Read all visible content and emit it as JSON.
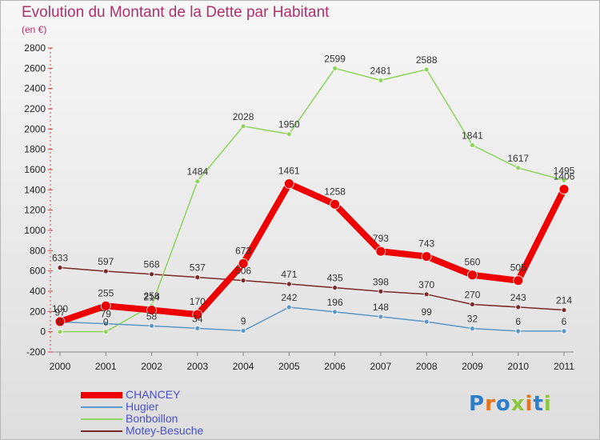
{
  "title": "Evolution du Montant de la Dette par Habitant",
  "subtitle": "(en €)",
  "logo": "Proxiti",
  "chart_data": {
    "type": "line",
    "title": "Evolution du Montant de la Dette par Habitant",
    "subtitle": "(en €)",
    "categories": [
      "2000",
      "2001",
      "2002",
      "2003",
      "2004",
      "2005",
      "2006",
      "2007",
      "2008",
      "2009",
      "2010",
      "2011"
    ],
    "ylim": [
      -200,
      2800
    ],
    "yticks": [
      -200,
      0,
      200,
      400,
      600,
      800,
      1000,
      1200,
      1400,
      1600,
      1800,
      2000,
      2200,
      2400,
      2600,
      2800
    ],
    "grid": false,
    "legend_position": "bottom-left",
    "series": [
      {
        "name": "Motey-Besuche",
        "color": "#7a2828",
        "values": [
          633,
          597,
          568,
          537,
          506,
          471,
          435,
          398,
          370,
          270,
          243,
          214
        ]
      },
      {
        "name": "Bonboillon",
        "color": "#8fd45a",
        "values": [
          0,
          0,
          258,
          1484,
          2028,
          1950,
          2599,
          2481,
          2588,
          1841,
          1617,
          1495
        ]
      },
      {
        "name": "Hugier",
        "color": "#5b97c8",
        "values": [
          97,
          79,
          58,
          34,
          9,
          242,
          196,
          148,
          99,
          32,
          6,
          6
        ]
      },
      {
        "name": "CHANCEY",
        "color": "#ee0000",
        "values": [
          100,
          255,
          214,
          170,
          673,
          1461,
          1258,
          793,
          743,
          560,
          505,
          1406
        ]
      }
    ]
  },
  "legend": [
    {
      "name": "CHANCEY",
      "color": "#ee0000"
    },
    {
      "name": "Hugier",
      "color": "#5b97c8"
    },
    {
      "name": "Bonboillon",
      "color": "#8fd45a"
    },
    {
      "name": "Motey-Besuche",
      "color": "#7a2828"
    }
  ]
}
